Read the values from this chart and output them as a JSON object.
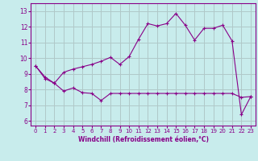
{
  "xlabel": "Windchill (Refroidissement éolien,°C)",
  "bg_color": "#c8ecec",
  "grid_color": "#b0c8c8",
  "line_color": "#880088",
  "x_ticks": [
    0,
    1,
    2,
    3,
    4,
    5,
    6,
    7,
    8,
    9,
    10,
    11,
    12,
    13,
    14,
    15,
    16,
    17,
    18,
    19,
    20,
    21,
    22,
    23
  ],
  "y_ticks": [
    6,
    7,
    8,
    9,
    10,
    11,
    12,
    13
  ],
  "xlim": [
    -0.5,
    23.5
  ],
  "ylim": [
    5.7,
    13.5
  ],
  "line1_x": [
    0,
    1,
    2,
    3,
    4,
    5,
    6,
    7,
    8,
    9,
    10,
    11,
    12,
    13,
    14,
    15,
    16,
    17,
    18,
    19,
    20,
    21,
    22,
    23
  ],
  "line1_y": [
    9.5,
    8.8,
    8.4,
    9.1,
    9.3,
    9.45,
    9.6,
    9.8,
    10.05,
    9.6,
    10.1,
    11.2,
    12.2,
    12.05,
    12.2,
    12.85,
    12.1,
    11.15,
    11.9,
    11.9,
    12.1,
    11.1,
    6.4,
    7.55
  ],
  "line2_x": [
    0,
    1,
    2,
    3,
    4,
    5,
    6,
    7,
    8,
    9,
    10,
    11,
    12,
    13,
    14,
    15,
    16,
    17,
    18,
    19,
    20,
    21,
    22,
    23
  ],
  "line2_y": [
    9.5,
    8.7,
    8.4,
    7.9,
    8.1,
    7.8,
    7.75,
    7.3,
    7.75,
    7.75,
    7.75,
    7.75,
    7.75,
    7.75,
    7.75,
    7.75,
    7.75,
    7.75,
    7.75,
    7.75,
    7.75,
    7.75,
    7.5,
    7.55
  ]
}
